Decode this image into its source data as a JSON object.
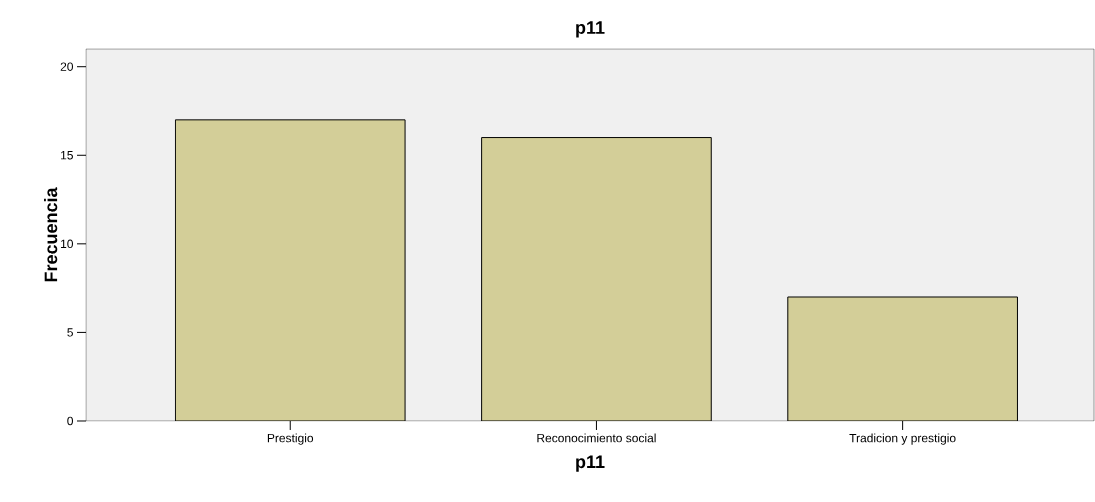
{
  "chart_data": {
    "type": "bar",
    "title": "p11",
    "xlabel": "p11",
    "ylabel": "Frecuencia",
    "categories": [
      "Prestigio",
      "Reconocimiento social",
      "Tradicion y prestigio"
    ],
    "values": [
      17,
      16,
      7
    ],
    "color": "#d3ce98",
    "ylim": [
      0,
      21
    ],
    "yticks": [
      0,
      5,
      10,
      15,
      20
    ],
    "grid": false
  }
}
